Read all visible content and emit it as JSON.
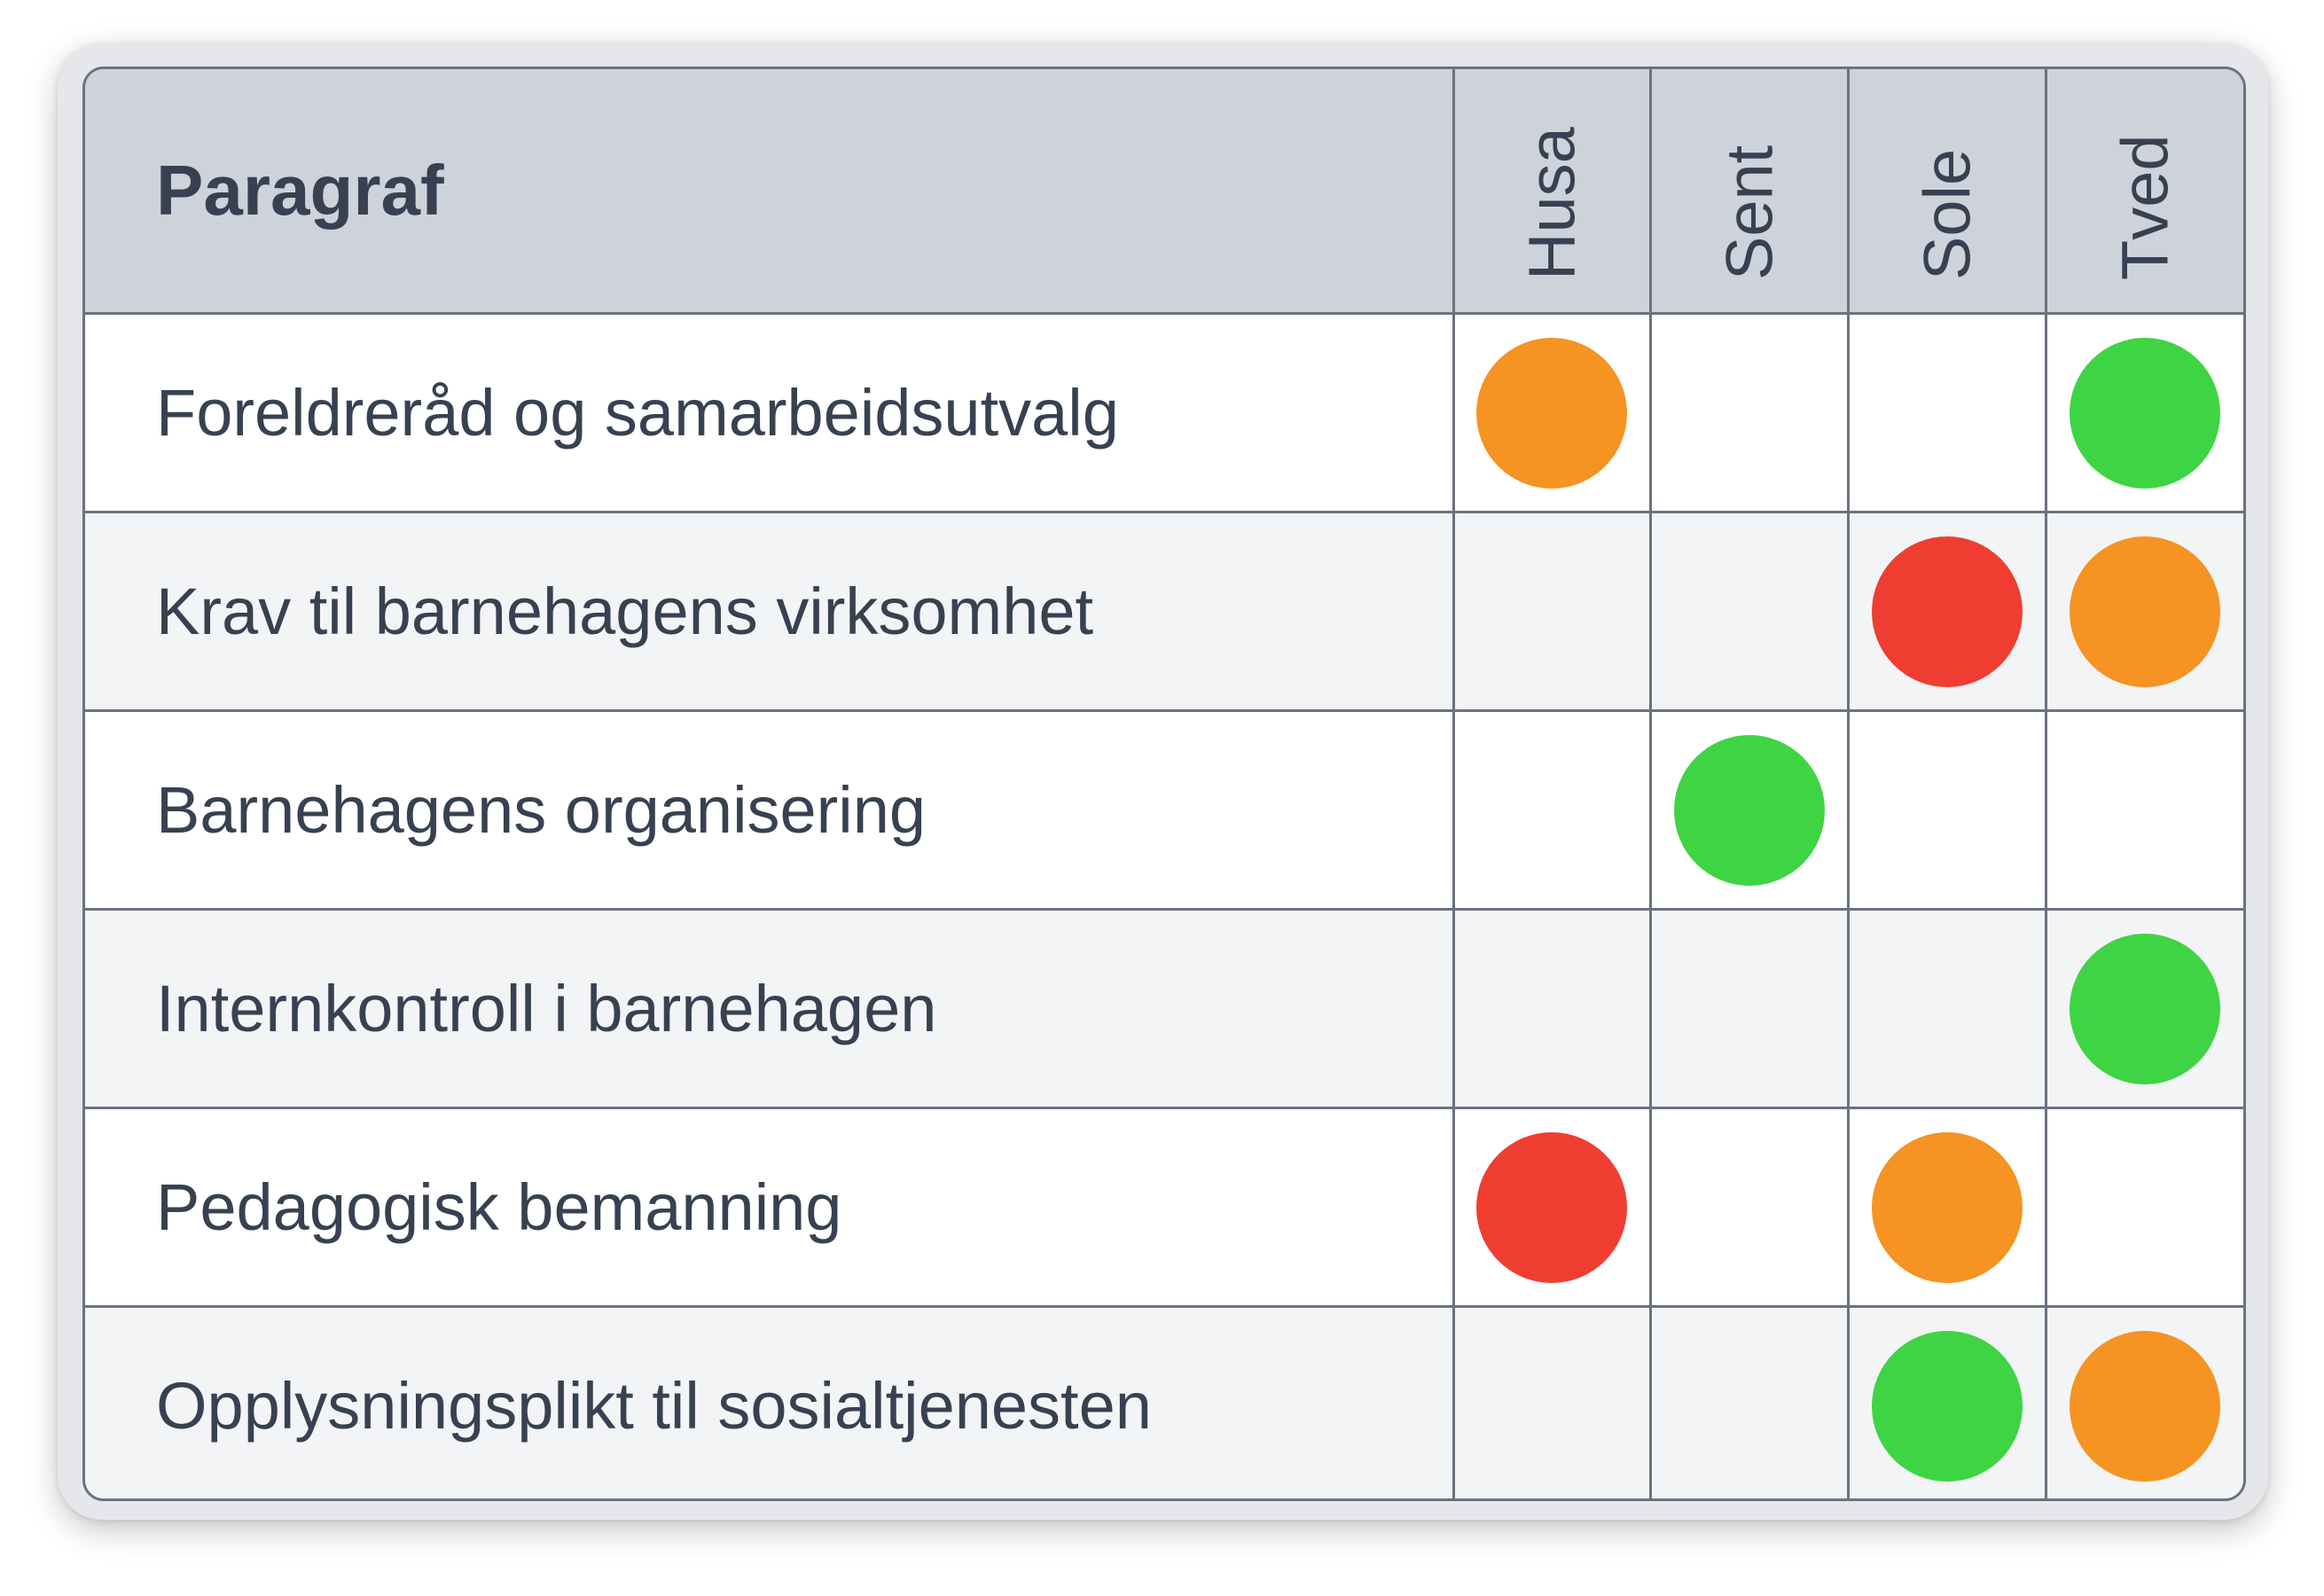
{
  "colors": {
    "green": "#3fd443",
    "orange": "#f59323",
    "red": "#ef3e31"
  },
  "table": {
    "header_label": "Paragraf",
    "sites": [
      "Husa",
      "Sent",
      "Sole",
      "Tved"
    ],
    "rows": [
      {
        "label": "Foreldreråd og samarbeidsutvalg",
        "status": [
          "orange",
          null,
          null,
          "green"
        ]
      },
      {
        "label": "Krav til barnehagens virksomhet",
        "status": [
          null,
          null,
          "red",
          "orange"
        ]
      },
      {
        "label": "Barnehagens organisering",
        "status": [
          null,
          "green",
          null,
          null
        ]
      },
      {
        "label": "Internkontroll i barnehagen",
        "status": [
          null,
          null,
          null,
          "green"
        ]
      },
      {
        "label": "Pedagogisk bemanning",
        "status": [
          "red",
          null,
          "orange",
          null
        ]
      },
      {
        "label": "Opplysningsplikt til sosialtjenesten",
        "status": [
          null,
          null,
          "green",
          "orange"
        ]
      }
    ]
  }
}
